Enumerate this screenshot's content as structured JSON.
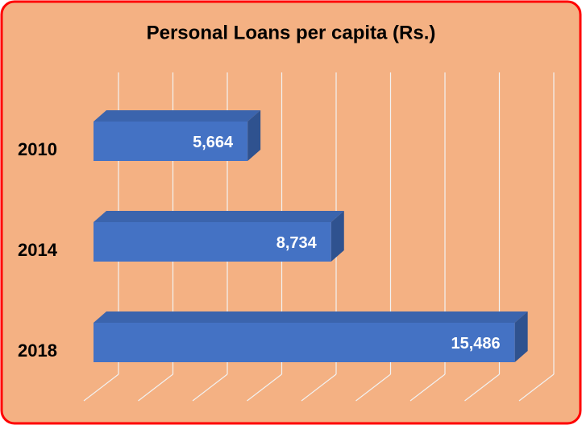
{
  "chart_data": {
    "type": "bar3d_horizontal",
    "title": "Personal Loans per capita (Rs.)",
    "categories": [
      "2010",
      "2014",
      "2018"
    ],
    "values": [
      5664,
      8734,
      15486
    ],
    "value_labels": [
      "5,664",
      "8,734",
      "15,486"
    ],
    "color": "#4472c4",
    "xlim": [
      0,
      16000
    ],
    "xticks": [
      0,
      2000,
      4000,
      6000,
      8000,
      10000,
      12000,
      14000,
      16000
    ],
    "grid": true
  }
}
